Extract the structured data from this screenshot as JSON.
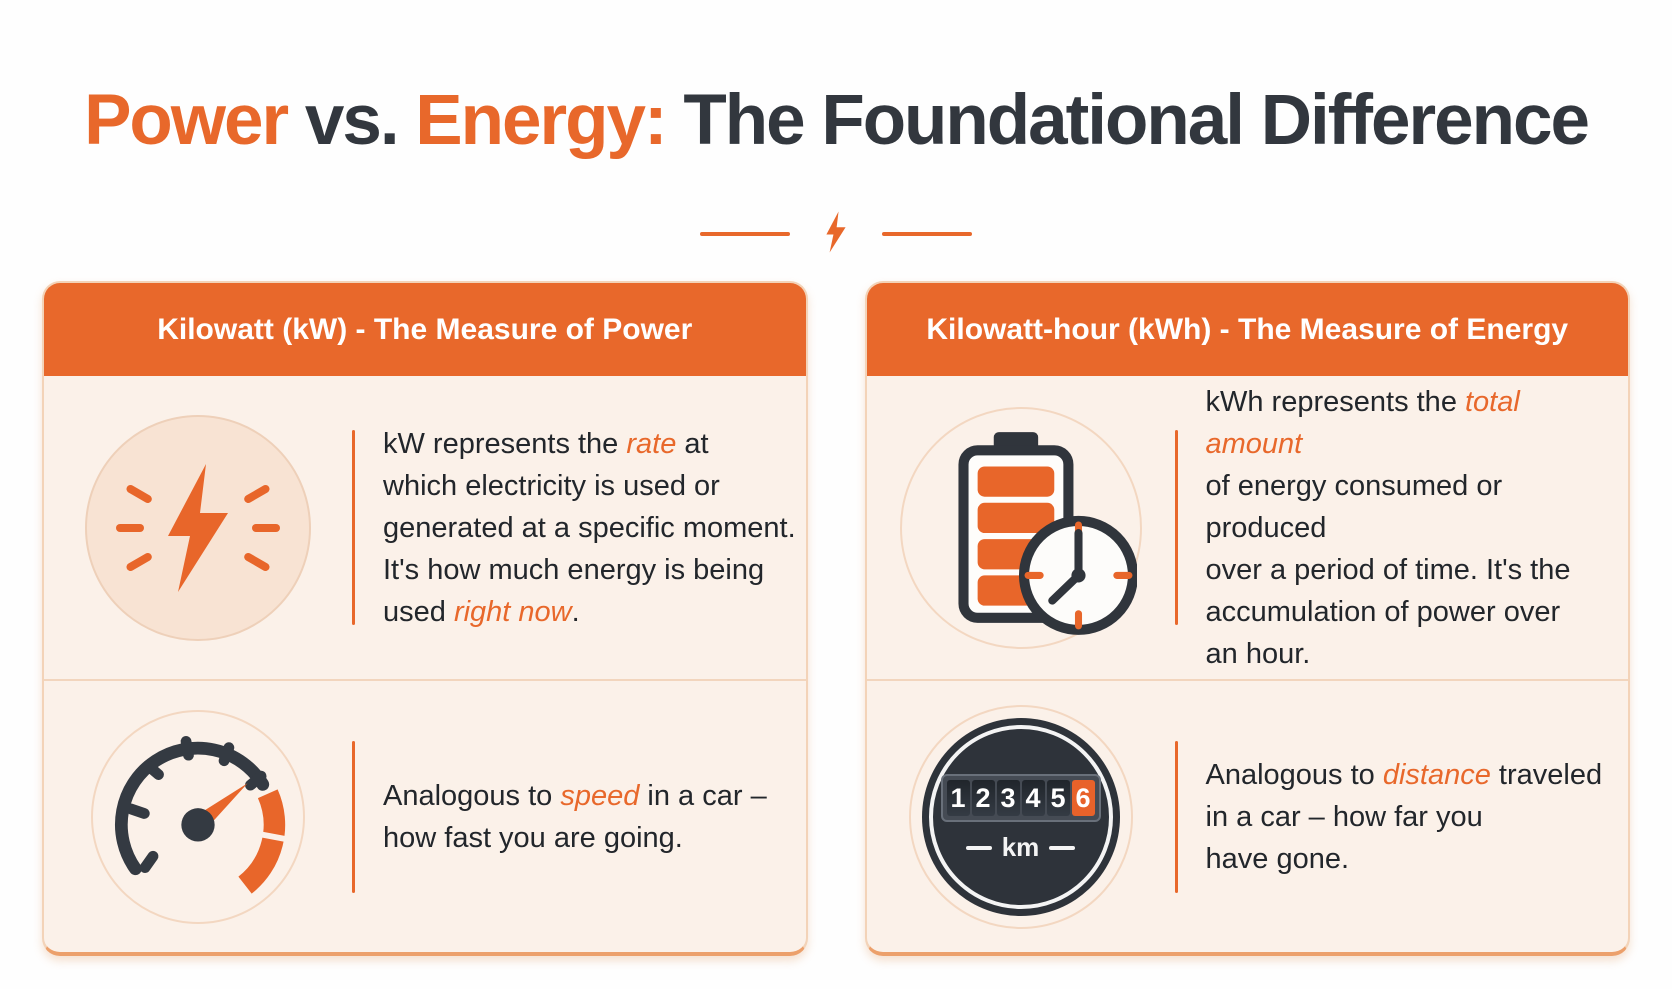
{
  "title": {
    "segments": [
      {
        "text": "Power",
        "style": "accent"
      },
      {
        "text": " vs. "
      },
      {
        "text": "Energy:",
        "style": "accent"
      },
      {
        "text": " The Foundational Difference"
      }
    ]
  },
  "colors": {
    "accent_orange": "#E8682B",
    "dark_charcoal": "#32373E",
    "card_background": "#FBF1E9",
    "body_text": "#22262B"
  },
  "cards": [
    {
      "header": "Kilowatt (kW) - The Measure of Power",
      "rows": [
        {
          "icon": "lightning-bolt-burst-icon",
          "segments": [
            {
              "text": "kW represents the "
            },
            {
              "text": "rate",
              "style": "em"
            },
            {
              "text": " at"
            },
            {
              "br": true
            },
            {
              "text": "which electricity is used or"
            },
            {
              "br": true
            },
            {
              "text": "generated at a specific moment."
            },
            {
              "br": true
            },
            {
              "text": "It's how much energy is being"
            },
            {
              "br": true
            },
            {
              "text": "used "
            },
            {
              "text": "right now",
              "style": "em"
            },
            {
              "text": "."
            }
          ]
        },
        {
          "icon": "speedometer-icon",
          "segments": [
            {
              "text": "Analogous to "
            },
            {
              "text": "speed",
              "style": "em"
            },
            {
              "text": " in a car –"
            },
            {
              "br": true
            },
            {
              "text": "how fast you are going."
            }
          ]
        }
      ]
    },
    {
      "header": "Kilowatt-hour (kWh) - The Measure of Energy",
      "rows": [
        {
          "icon": "battery-clock-icon",
          "segments": [
            {
              "text": "kWh represents the "
            },
            {
              "text": "total amount",
              "style": "em"
            },
            {
              "br": true
            },
            {
              "text": "of energy consumed or produced"
            },
            {
              "br": true
            },
            {
              "text": "over a period of time. It's the"
            },
            {
              "br": true
            },
            {
              "text": "accumulation of power over"
            },
            {
              "br": true
            },
            {
              "text": "an hour."
            }
          ]
        },
        {
          "icon": "odometer-icon",
          "odometer": {
            "digits": [
              "1",
              "2",
              "3",
              "4",
              "5",
              "6"
            ],
            "unit": "km"
          },
          "segments": [
            {
              "text": "Analogous to "
            },
            {
              "text": "distance",
              "style": "em"
            },
            {
              "text": " traveled"
            },
            {
              "br": true
            },
            {
              "text": "in a car – how far you"
            },
            {
              "br": true
            },
            {
              "text": "have gone."
            }
          ]
        }
      ]
    }
  ]
}
